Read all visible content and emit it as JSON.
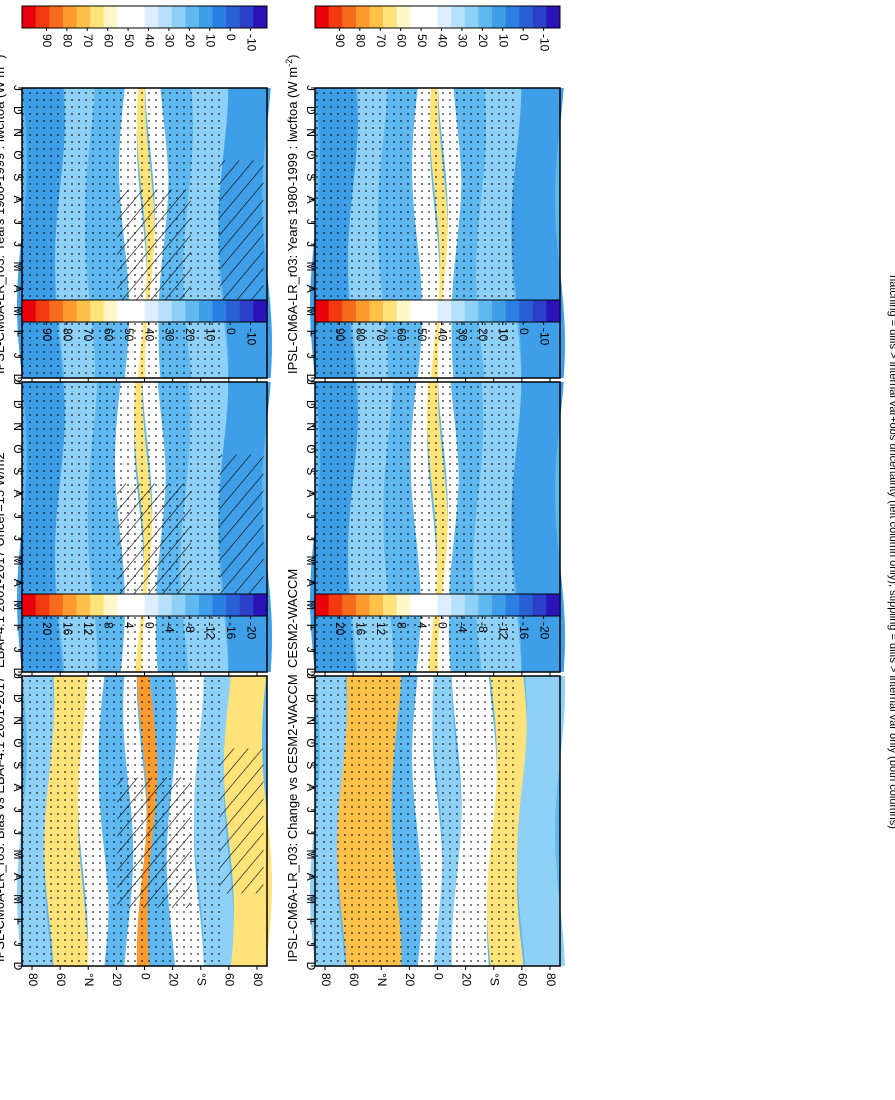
{
  "footnote": "hatching = diffs > internal var+obs uncertainty (left column only); stippling = diffs > internal var only (both columns)",
  "latitude_ticks": [
    "80",
    "60",
    "°N",
    "20",
    "0",
    "20",
    "°S",
    "60",
    "80"
  ],
  "month_ticks": [
    "D",
    "J",
    "F",
    "M",
    "A",
    "M",
    "J",
    "J",
    "A",
    "S",
    "O",
    "N",
    "D",
    "J"
  ],
  "colorbar_clim": {
    "labels": [
      "90",
      "80",
      "70",
      "60",
      "50",
      "40",
      "30",
      "20",
      "10",
      "0",
      "-10"
    ],
    "colors": [
      "#e8000b",
      "#f23a10",
      "#f86a1c",
      "#fb9a2f",
      "#fdc14a",
      "#fde37a",
      "#fff7c9",
      "#ffffff",
      "#ffffff",
      "#ddefff",
      "#b7e1fa",
      "#8ed0f6",
      "#5fb9f0",
      "#3e9ee8",
      "#2b7fe0",
      "#2a5fd6",
      "#2c3fc9",
      "#2a14b8"
    ]
  },
  "colorbar_diff": {
    "labels": [
      "20",
      "16",
      "12",
      "8",
      "4",
      "0",
      "-4",
      "-8",
      "-12",
      "-16",
      "-20"
    ],
    "colors": [
      "#e8000b",
      "#f23a10",
      "#f86a1c",
      "#fb9a2f",
      "#fdc14a",
      "#fde37a",
      "#fff7c9",
      "#ffffff",
      "#ffffff",
      "#ddefff",
      "#b7e1fa",
      "#8ed0f6",
      "#5fb9f0",
      "#3e9ee8",
      "#2b7fe0",
      "#2a5fd6",
      "#2c3fc9",
      "#2a14b8"
    ]
  },
  "chart_data": [
    {
      "type": "heatmap",
      "panel": "left-top",
      "title": "IPSL-CM6A-LR_r03: Years 1980-1999 : lwcftoa (W m",
      "title_sup": "-2",
      "title_end": ")",
      "x_axis": "month",
      "y_axis": "latitude",
      "ylim": [
        -90,
        90
      ],
      "colorbar": "colorbar_clim",
      "hatching": true,
      "stippling": true,
      "bands": [
        {
          "lat": [
            -90,
            -62
          ],
          "color": "#3e9ee8"
        },
        {
          "lat": [
            -62,
            -40
          ],
          "color": "#8ed0f6"
        },
        {
          "lat": [
            -40,
            -15
          ],
          "color": "#5fb9f0"
        },
        {
          "lat": [
            -15,
            -2
          ],
          "color": "#ffffff"
        },
        {
          "lat": [
            -2,
            4
          ],
          "color": "#fde37a"
        },
        {
          "lat": [
            4,
            14
          ],
          "color": "#ffffff"
        },
        {
          "lat": [
            14,
            32
          ],
          "color": "#5fb9f0"
        },
        {
          "lat": [
            32,
            58
          ],
          "color": "#8ed0f6"
        },
        {
          "lat": [
            58,
            90
          ],
          "color": "#3e9ee8"
        }
      ]
    },
    {
      "type": "heatmap",
      "panel": "right-top",
      "title": "IPSL-CM6A-LR_r03: Years 1980-1999 : lwcftoa (W m",
      "title_sup": "-2",
      "title_end": ")",
      "x_axis": "month",
      "y_axis": "latitude",
      "ylim": [
        -90,
        90
      ],
      "colorbar": "colorbar_clim",
      "hatching": false,
      "stippling": true,
      "bands": [
        {
          "lat": [
            -90,
            -62
          ],
          "color": "#3e9ee8"
        },
        {
          "lat": [
            -62,
            -40
          ],
          "color": "#8ed0f6"
        },
        {
          "lat": [
            -40,
            -15
          ],
          "color": "#5fb9f0"
        },
        {
          "lat": [
            -15,
            -2
          ],
          "color": "#ffffff"
        },
        {
          "lat": [
            -2,
            4
          ],
          "color": "#fde37a"
        },
        {
          "lat": [
            4,
            14
          ],
          "color": "#ffffff"
        },
        {
          "lat": [
            14,
            32
          ],
          "color": "#5fb9f0"
        },
        {
          "lat": [
            32,
            58
          ],
          "color": "#8ed0f6"
        },
        {
          "lat": [
            58,
            90
          ],
          "color": "#3e9ee8"
        }
      ]
    },
    {
      "type": "heatmap",
      "panel": "left-middle",
      "title": "EBAF4.1 2001-2017 Uncer=15 W/m2",
      "x_axis": "month",
      "y_axis": "latitude",
      "ylim": [
        -90,
        90
      ],
      "colorbar": "colorbar_clim",
      "hatching": true,
      "stippling": true,
      "bands": [
        {
          "lat": [
            -90,
            -62
          ],
          "color": "#3e9ee8"
        },
        {
          "lat": [
            -62,
            -38
          ],
          "color": "#8ed0f6"
        },
        {
          "lat": [
            -38,
            -18
          ],
          "color": "#5fb9f0"
        },
        {
          "lat": [
            -18,
            -4
          ],
          "color": "#ffffff"
        },
        {
          "lat": [
            -4,
            2
          ],
          "color": "#fde37a"
        },
        {
          "lat": [
            2,
            12
          ],
          "color": "#ffffff"
        },
        {
          "lat": [
            12,
            30
          ],
          "color": "#5fb9f0"
        },
        {
          "lat": [
            30,
            58
          ],
          "color": "#8ed0f6"
        },
        {
          "lat": [
            58,
            90
          ],
          "color": "#3e9ee8"
        }
      ]
    },
    {
      "type": "heatmap",
      "panel": "right-middle",
      "title": "CESM2-WACCM",
      "x_axis": "month",
      "y_axis": "latitude",
      "ylim": [
        -90,
        90
      ],
      "colorbar": "colorbar_clim",
      "hatching": false,
      "stippling": true,
      "bands": [
        {
          "lat": [
            -90,
            -62
          ],
          "color": "#3e9ee8"
        },
        {
          "lat": [
            -62,
            -36
          ],
          "color": "#8ed0f6"
        },
        {
          "lat": [
            -36,
            -16
          ],
          "color": "#5fb9f0"
        },
        {
          "lat": [
            -16,
            -4
          ],
          "color": "#ffffff"
        },
        {
          "lat": [
            -4,
            4
          ],
          "color": "#fde37a"
        },
        {
          "lat": [
            4,
            12
          ],
          "color": "#ffffff"
        },
        {
          "lat": [
            12,
            30
          ],
          "color": "#5fb9f0"
        },
        {
          "lat": [
            30,
            58
          ],
          "color": "#8ed0f6"
        },
        {
          "lat": [
            58,
            90
          ],
          "color": "#3e9ee8"
        }
      ]
    },
    {
      "type": "heatmap",
      "panel": "left-bottom",
      "title": "IPSL-CM6A-LR_r03: Bias vs EBAF4.1 2001-2017",
      "x_axis": "month",
      "y_axis": "latitude",
      "ylim": [
        -90,
        90
      ],
      "colorbar": "colorbar_diff",
      "hatching": true,
      "stippling": true,
      "bands": [
        {
          "lat": [
            -90,
            -70
          ],
          "color": "#8ed0f6"
        },
        {
          "lat": [
            -70,
            -45
          ],
          "color": "#fde37a"
        },
        {
          "lat": [
            -45,
            -30
          ],
          "color": "#ffffff"
        },
        {
          "lat": [
            -30,
            -12
          ],
          "color": "#5fb9f0"
        },
        {
          "lat": [
            -12,
            -2
          ],
          "color": "#ffffff"
        },
        {
          "lat": [
            -2,
            6
          ],
          "color": "#fb9a2f"
        },
        {
          "lat": [
            6,
            20
          ],
          "color": "#5fb9f0"
        },
        {
          "lat": [
            20,
            40
          ],
          "color": "#ffffff"
        },
        {
          "lat": [
            40,
            62
          ],
          "color": "#8ed0f6"
        },
        {
          "lat": [
            62,
            90
          ],
          "color": "#fde37a"
        }
      ]
    },
    {
      "type": "heatmap",
      "panel": "right-bottom",
      "title": "IPSL-CM6A-LR_r03: Change vs CESM2-WACCM",
      "x_axis": "month",
      "y_axis": "latitude",
      "ylim": [
        -90,
        90
      ],
      "colorbar": "colorbar_diff",
      "hatching": false,
      "stippling": true,
      "bands": [
        {
          "lat": [
            -90,
            -70
          ],
          "color": "#8ed0f6"
        },
        {
          "lat": [
            -70,
            -30
          ],
          "color": "#fdc14a"
        },
        {
          "lat": [
            -30,
            -15
          ],
          "color": "#5fb9f0"
        },
        {
          "lat": [
            -15,
            0
          ],
          "color": "#ffffff"
        },
        {
          "lat": [
            0,
            14
          ],
          "color": "#8ed0f6"
        },
        {
          "lat": [
            14,
            40
          ],
          "color": "#ffffff"
        },
        {
          "lat": [
            40,
            62
          ],
          "color": "#fde37a"
        },
        {
          "lat": [
            62,
            90
          ],
          "color": "#8ed0f6"
        }
      ]
    }
  ]
}
